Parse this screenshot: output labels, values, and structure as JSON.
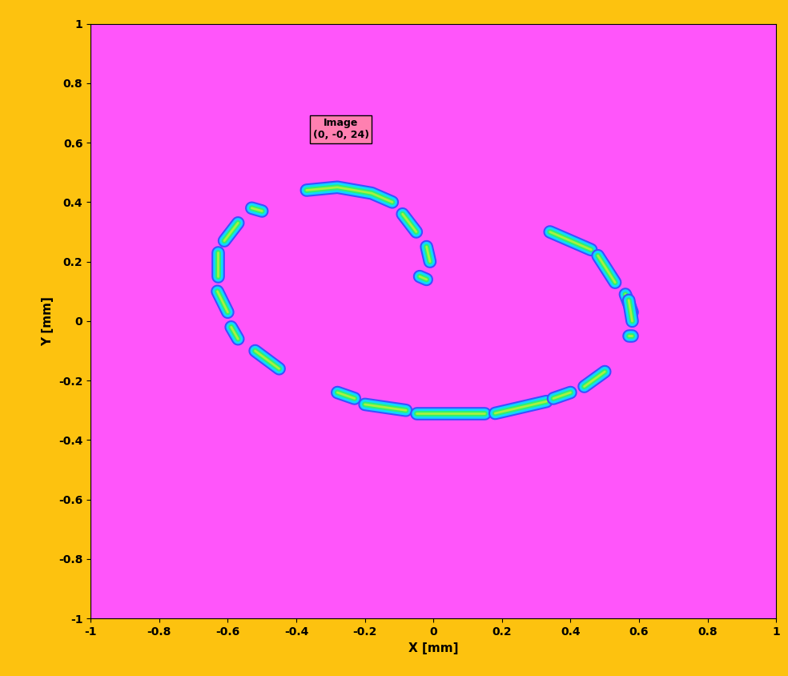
{
  "chart_data": {
    "type": "image",
    "annotation": "Image\n(0, -0, 24)",
    "x_label": "X [mm]",
    "y_label": "Y [mm]",
    "xlim": [
      -1,
      1
    ],
    "ylim": [
      -1,
      1
    ],
    "xticks": [
      -1,
      -0.8,
      -0.6,
      -0.4,
      -0.2,
      0,
      0.2,
      0.4,
      0.6,
      0.8,
      1
    ],
    "yticks": [
      -1,
      -0.8,
      -0.6,
      -0.4,
      -0.2,
      0,
      0.2,
      0.4,
      0.6,
      0.8,
      1
    ],
    "segments": [
      [
        [
          -0.37,
          0.44
        ],
        [
          -0.28,
          0.45
        ],
        [
          -0.18,
          0.43
        ],
        [
          -0.12,
          0.4
        ]
      ],
      [
        [
          -0.09,
          0.36
        ],
        [
          -0.05,
          0.3
        ]
      ],
      [
        [
          -0.02,
          0.25
        ],
        [
          -0.01,
          0.2
        ]
      ],
      [
        [
          -0.04,
          0.15
        ],
        [
          -0.02,
          0.14
        ]
      ],
      [
        [
          -0.53,
          0.38
        ],
        [
          -0.5,
          0.37
        ]
      ],
      [
        [
          -0.57,
          0.33
        ],
        [
          -0.61,
          0.27
        ]
      ],
      [
        [
          -0.63,
          0.23
        ],
        [
          -0.63,
          0.15
        ]
      ],
      [
        [
          -0.63,
          0.1
        ],
        [
          -0.6,
          0.03
        ]
      ],
      [
        [
          -0.59,
          -0.02
        ],
        [
          -0.57,
          -0.06
        ]
      ],
      [
        [
          -0.52,
          -0.1
        ],
        [
          -0.45,
          -0.16
        ]
      ],
      [
        [
          -0.28,
          -0.24
        ],
        [
          -0.23,
          -0.26
        ]
      ],
      [
        [
          -0.2,
          -0.28
        ],
        [
          -0.08,
          -0.3
        ]
      ],
      [
        [
          -0.05,
          -0.31
        ],
        [
          0.15,
          -0.31
        ]
      ],
      [
        [
          0.18,
          -0.31
        ],
        [
          0.33,
          -0.27
        ]
      ],
      [
        [
          0.35,
          -0.26
        ],
        [
          0.4,
          -0.24
        ]
      ],
      [
        [
          0.44,
          -0.22
        ],
        [
          0.5,
          -0.17
        ]
      ],
      [
        [
          0.34,
          0.3
        ],
        [
          0.46,
          0.24
        ]
      ],
      [
        [
          0.48,
          0.22
        ],
        [
          0.53,
          0.13
        ]
      ],
      [
        [
          0.56,
          0.09
        ],
        [
          0.58,
          0.03
        ]
      ],
      [
        [
          0.57,
          0.07
        ],
        [
          0.58,
          0.0
        ]
      ],
      [
        [
          0.57,
          -0.05
        ],
        [
          0.58,
          -0.05
        ]
      ]
    ]
  }
}
